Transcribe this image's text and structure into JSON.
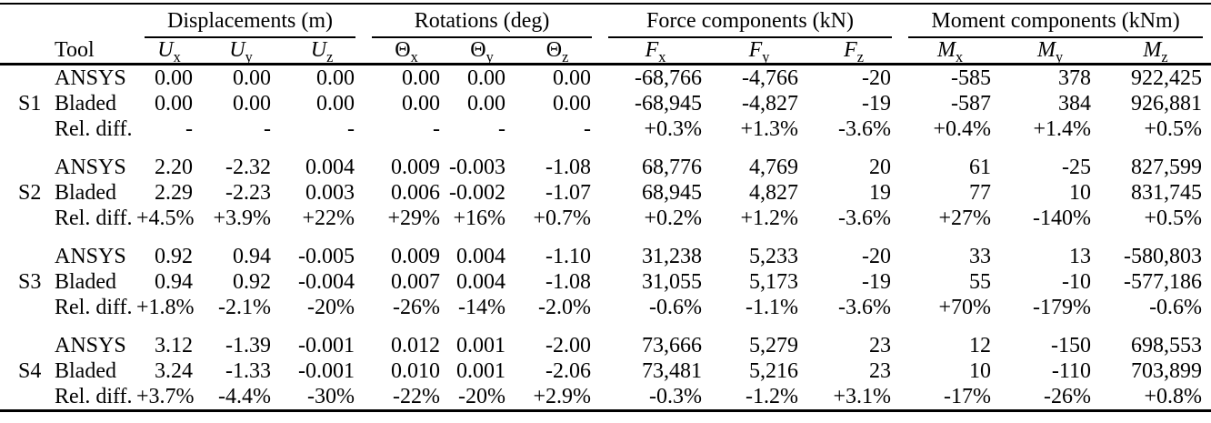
{
  "page": {
    "background_color": "#ffffff",
    "text_color": "#000000",
    "rule_color": "#000000"
  },
  "table": {
    "tool_header": "Tool",
    "groups": [
      {
        "name": "displacements",
        "label": "Displacements (m)",
        "columns": [
          {
            "name": "u-x",
            "base": "U",
            "sub": "x",
            "italic": true
          },
          {
            "name": "u-y",
            "base": "U",
            "sub": "y",
            "italic": true
          },
          {
            "name": "u-z",
            "base": "U",
            "sub": "z",
            "italic": true
          }
        ]
      },
      {
        "name": "rotations",
        "label": "Rotations (deg)",
        "columns": [
          {
            "name": "theta-x",
            "base": "Θ",
            "sub": "x",
            "italic": false
          },
          {
            "name": "theta-y",
            "base": "Θ",
            "sub": "y",
            "italic": false
          },
          {
            "name": "theta-z",
            "base": "Θ",
            "sub": "z",
            "italic": false
          }
        ]
      },
      {
        "name": "force-components",
        "label": "Force components (kN)",
        "columns": [
          {
            "name": "f-x",
            "base": "F",
            "sub": "x",
            "italic": true
          },
          {
            "name": "f-y",
            "base": "F",
            "sub": "y",
            "italic": true
          },
          {
            "name": "f-z",
            "base": "F",
            "sub": "z",
            "italic": true
          }
        ]
      },
      {
        "name": "moment-components",
        "label": "Moment components (kNm)",
        "columns": [
          {
            "name": "m-x",
            "base": "M",
            "sub": "x",
            "italic": true
          },
          {
            "name": "m-y",
            "base": "M",
            "sub": "y",
            "italic": true
          },
          {
            "name": "m-z",
            "base": "M",
            "sub": "z",
            "italic": true
          }
        ]
      }
    ],
    "sections": [
      {
        "id": "S1",
        "rows": [
          {
            "tool": "ANSYS",
            "values": [
              "0.00",
              "0.00",
              "0.00",
              "0.00",
              "0.00",
              "0.00",
              "-68,766",
              "-4,766",
              "-20",
              "-585",
              "378",
              "922,425"
            ]
          },
          {
            "tool": "Bladed",
            "values": [
              "0.00",
              "0.00",
              "0.00",
              "0.00",
              "0.00",
              "0.00",
              "-68,945",
              "-4,827",
              "-19",
              "-587",
              "384",
              "926,881"
            ]
          },
          {
            "tool": "Rel. diff.",
            "values": [
              "-",
              "-",
              "-",
              "-",
              "-",
              "-",
              "+0.3%",
              "+1.3%",
              "-3.6%",
              "+0.4%",
              "+1.4%",
              "+0.5%"
            ]
          }
        ]
      },
      {
        "id": "S2",
        "rows": [
          {
            "tool": "ANSYS",
            "values": [
              "2.20",
              "-2.32",
              "0.004",
              "0.009",
              "-0.003",
              "-1.08",
              "68,776",
              "4,769",
              "20",
              "61",
              "-25",
              "827,599"
            ]
          },
          {
            "tool": "Bladed",
            "values": [
              "2.29",
              "-2.23",
              "0.003",
              "0.006",
              "-0.002",
              "-1.07",
              "68,945",
              "4,827",
              "19",
              "77",
              "10",
              "831,745"
            ]
          },
          {
            "tool": "Rel. diff.",
            "values": [
              "+4.5%",
              "+3.9%",
              "+22%",
              "+29%",
              "+16%",
              "+0.7%",
              "+0.2%",
              "+1.2%",
              "-3.6%",
              "+27%",
              "-140%",
              "+0.5%"
            ]
          }
        ]
      },
      {
        "id": "S3",
        "rows": [
          {
            "tool": "ANSYS",
            "values": [
              "0.92",
              "0.94",
              "-0.005",
              "0.009",
              "0.004",
              "-1.10",
              "31,238",
              "5,233",
              "-20",
              "33",
              "13",
              "-580,803"
            ]
          },
          {
            "tool": "Bladed",
            "values": [
              "0.94",
              "0.92",
              "-0.004",
              "0.007",
              "0.004",
              "-1.08",
              "31,055",
              "5,173",
              "-19",
              "55",
              "-10",
              "-577,186"
            ]
          },
          {
            "tool": "Rel. diff.",
            "values": [
              "+1.8%",
              "-2.1%",
              "-20%",
              "-26%",
              "-14%",
              "-2.0%",
              "-0.6%",
              "-1.1%",
              "-3.6%",
              "+70%",
              "-179%",
              "-0.6%"
            ]
          }
        ]
      },
      {
        "id": "S4",
        "rows": [
          {
            "tool": "ANSYS",
            "values": [
              "3.12",
              "-1.39",
              "-0.001",
              "0.012",
              "0.001",
              "-2.00",
              "73,666",
              "5,279",
              "23",
              "12",
              "-150",
              "698,553"
            ]
          },
          {
            "tool": "Bladed",
            "values": [
              "3.24",
              "-1.33",
              "-0.001",
              "0.010",
              "0.001",
              "-2.06",
              "73,481",
              "5,216",
              "23",
              "10",
              "-110",
              "703,899"
            ]
          },
          {
            "tool": "Rel. diff.",
            "values": [
              "+3.7%",
              "-4.4%",
              "-30%",
              "-22%",
              "-20%",
              "+2.9%",
              "-0.3%",
              "-1.2%",
              "+3.1%",
              "-17%",
              "-26%",
              "+0.8%"
            ]
          }
        ]
      }
    ]
  }
}
